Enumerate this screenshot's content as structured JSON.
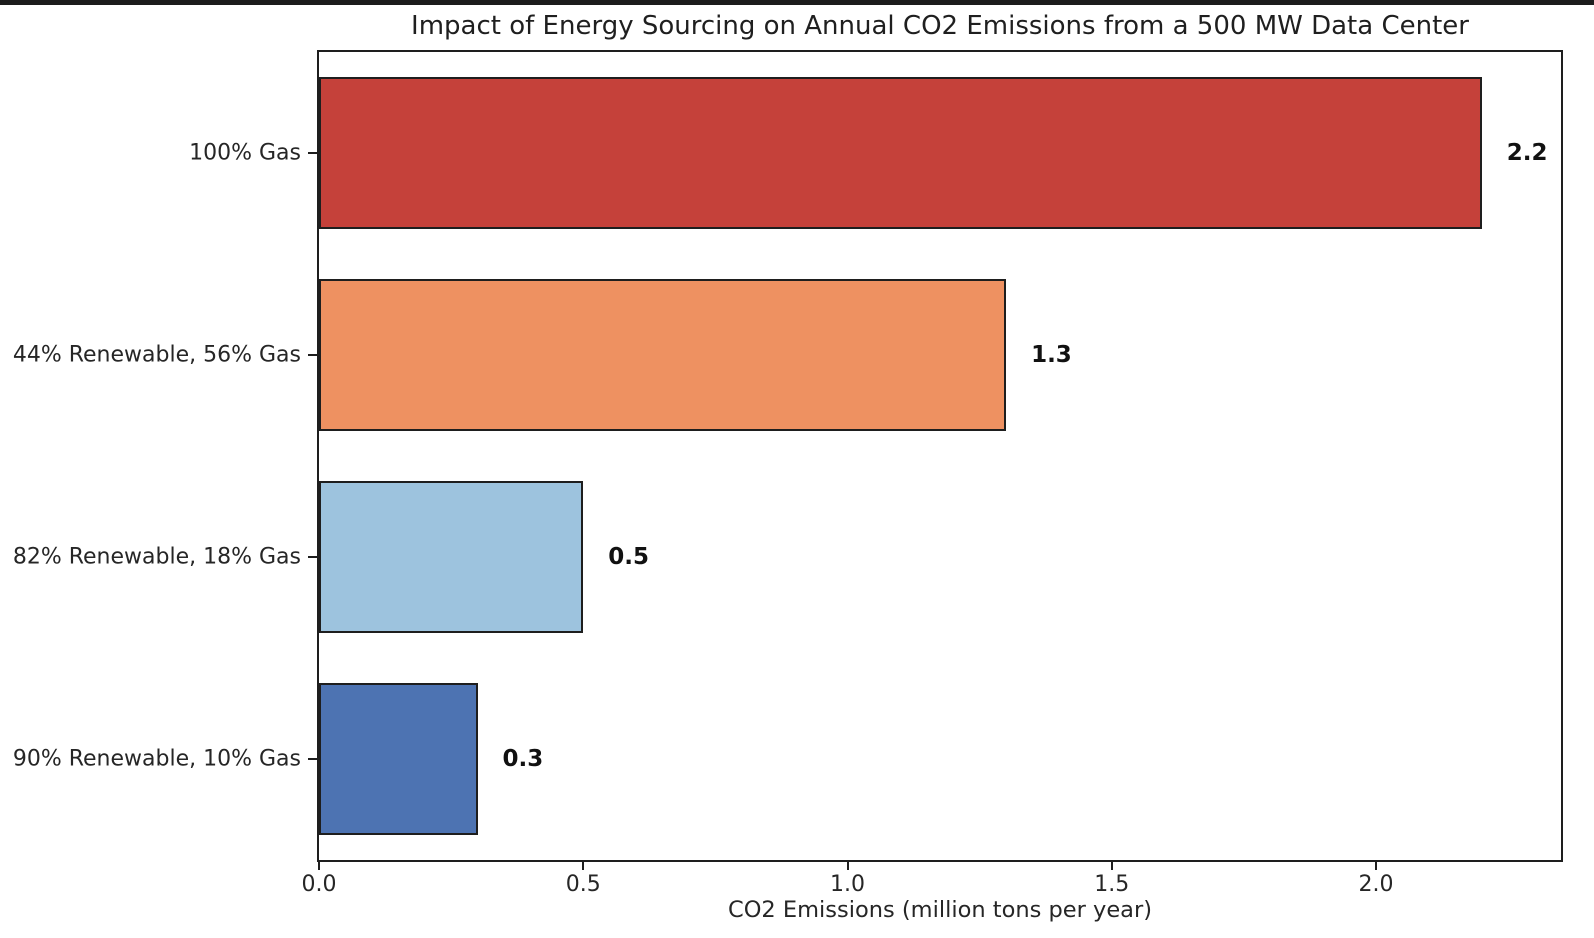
{
  "chart_data": {
    "type": "bar",
    "orientation": "horizontal",
    "title": "Impact of Energy Sourcing on Annual CO2 Emissions from a 500 MW Data Center",
    "xlabel": "CO2 Emissions (million tons per year)",
    "ylabel": "",
    "categories": [
      "100% Gas",
      "44% Renewable, 56% Gas",
      "82% Renewable, 18% Gas",
      "90% Renewable, 10% Gas"
    ],
    "values": [
      2.2,
      1.3,
      0.5,
      0.3
    ],
    "value_labels": [
      "2.2",
      "1.3",
      "0.5",
      "0.3"
    ],
    "bar_colors": [
      "#c5413a",
      "#ee9161",
      "#9dc3de",
      "#4d73b2"
    ],
    "bar_edge_color": "#1e1e1e",
    "xlim": [
      0,
      2.35
    ],
    "xticks": [
      "0.0",
      "0.5",
      "1.0",
      "1.5",
      "2.0"
    ],
    "xtick_values": [
      0.0,
      0.5,
      1.0,
      1.5,
      2.0
    ],
    "grid": false,
    "legend_position": "none",
    "background_color": "#ffffff"
  }
}
